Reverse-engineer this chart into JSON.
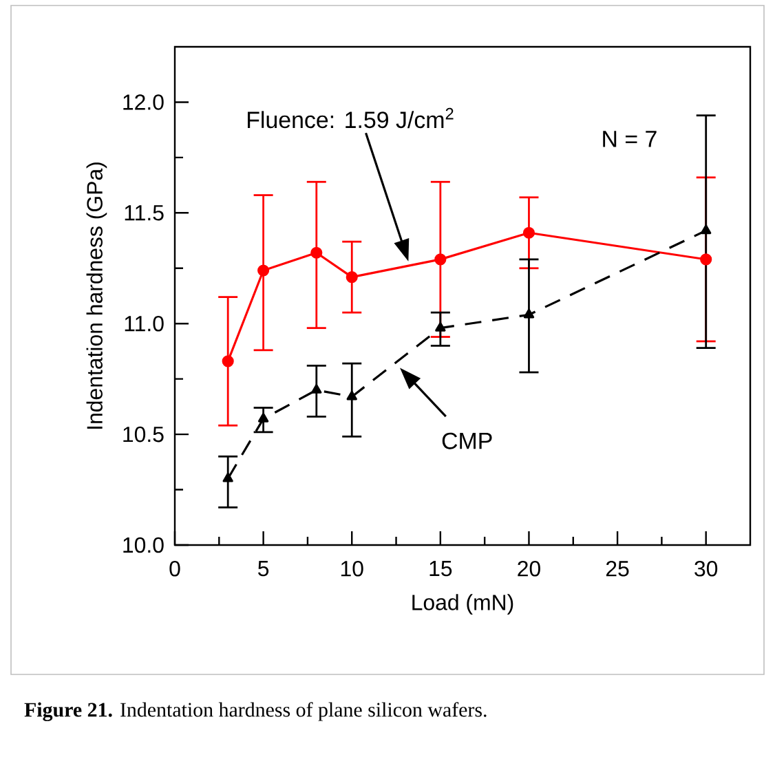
{
  "chart_data": {
    "type": "line",
    "xlabel": "Load (mN)",
    "ylabel": "Indentation hardness (GPa)",
    "x": [
      3,
      5,
      8,
      10,
      15,
      20,
      30
    ],
    "series": [
      {
        "color": "#ff0000",
        "marker": "circle",
        "line_style": "solid",
        "values": [
          10.83,
          11.24,
          11.32,
          11.21,
          11.29,
          11.41,
          11.29
        ],
        "errors": [
          [
            10.54,
            11.12
          ],
          [
            10.88,
            11.58
          ],
          [
            10.98,
            11.64
          ],
          [
            11.05,
            11.37
          ],
          [
            10.94,
            11.64
          ],
          [
            11.25,
            11.57
          ],
          [
            10.92,
            11.66
          ]
        ]
      },
      {
        "color": "#000000",
        "marker": "triangle",
        "line_style": "dashed",
        "values": [
          10.3,
          10.57,
          10.7,
          10.67,
          10.98,
          11.04,
          11.42
        ],
        "errors": [
          [
            10.17,
            10.4
          ],
          [
            10.51,
            10.62
          ],
          [
            10.58,
            10.81
          ],
          [
            10.49,
            10.82
          ],
          [
            10.9,
            11.05
          ],
          [
            10.78,
            11.29
          ],
          [
            10.89,
            11.94
          ]
        ]
      }
    ],
    "xlim": [
      0,
      32.5
    ],
    "ylim": [
      10,
      12.25
    ],
    "xticks": [
      0,
      {
        "value": 2.5,
        "label": null
      },
      5,
      {
        "value": 7.5,
        "label": null
      },
      10,
      {
        "value": 12.5,
        "label": null
      },
      15,
      {
        "value": 17.5,
        "label": null
      },
      20,
      {
        "value": 22.5,
        "label": null
      },
      25,
      {
        "value": 27.5,
        "label": null
      },
      30
    ],
    "yticks": [
      {
        "value": 10,
        "label": "10.0"
      },
      {
        "value": 10.25,
        "label": null
      },
      {
        "value": 10.5,
        "label": "10.5"
      },
      {
        "value": 10.75,
        "label": null
      },
      {
        "value": 11,
        "label": "11.0"
      },
      {
        "value": 11.25,
        "label": null
      },
      {
        "value": 11.5,
        "label": "11.5"
      },
      {
        "value": 11.75,
        "label": null
      },
      {
        "value": 12,
        "label": "12.0"
      }
    ],
    "grid": false,
    "annotations": [
      "Fluence: 1.59 J/cm$^{2}$",
      "CMP",
      "N = 7",
      "**Figure 21.** Indentation hardness of plane silicon wafers."
    ]
  }
}
